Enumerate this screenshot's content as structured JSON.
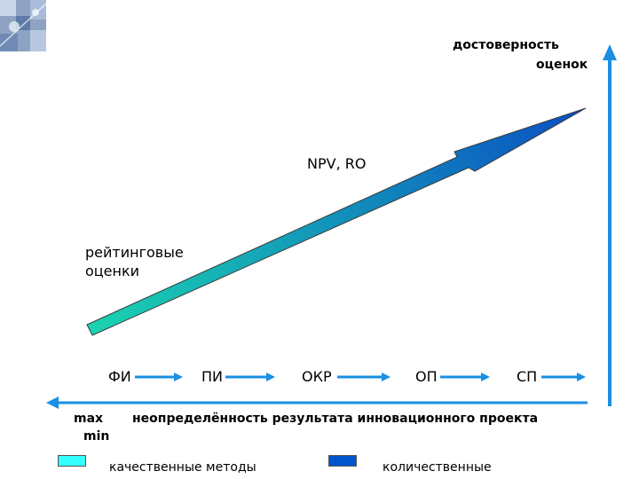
{
  "title_axis": {
    "line1": "достоверность",
    "line2": "оценок"
  },
  "stages": [
    "ФИ",
    "ПИ",
    "ОКР",
    "ОП",
    "СП"
  ],
  "annotations": {
    "npv": "NPV, RO",
    "rating_line1": "рейтинговые",
    "rating_line2": "оценки"
  },
  "bottom_axis": {
    "max": "max",
    "min": "min",
    "caption": "неопределённость результата инновационного проекта"
  },
  "legend": [
    {
      "label": "качественные методы",
      "color": "#33ffff"
    },
    {
      "label": "количественные",
      "color": "#0055cc"
    }
  ],
  "colors": {
    "axis_arrow": "#1a8fe3",
    "gradient_start": "#1ad3b0",
    "gradient_end": "#0a4fc4"
  },
  "icons": {
    "logo": "abstract-tech-logo"
  }
}
